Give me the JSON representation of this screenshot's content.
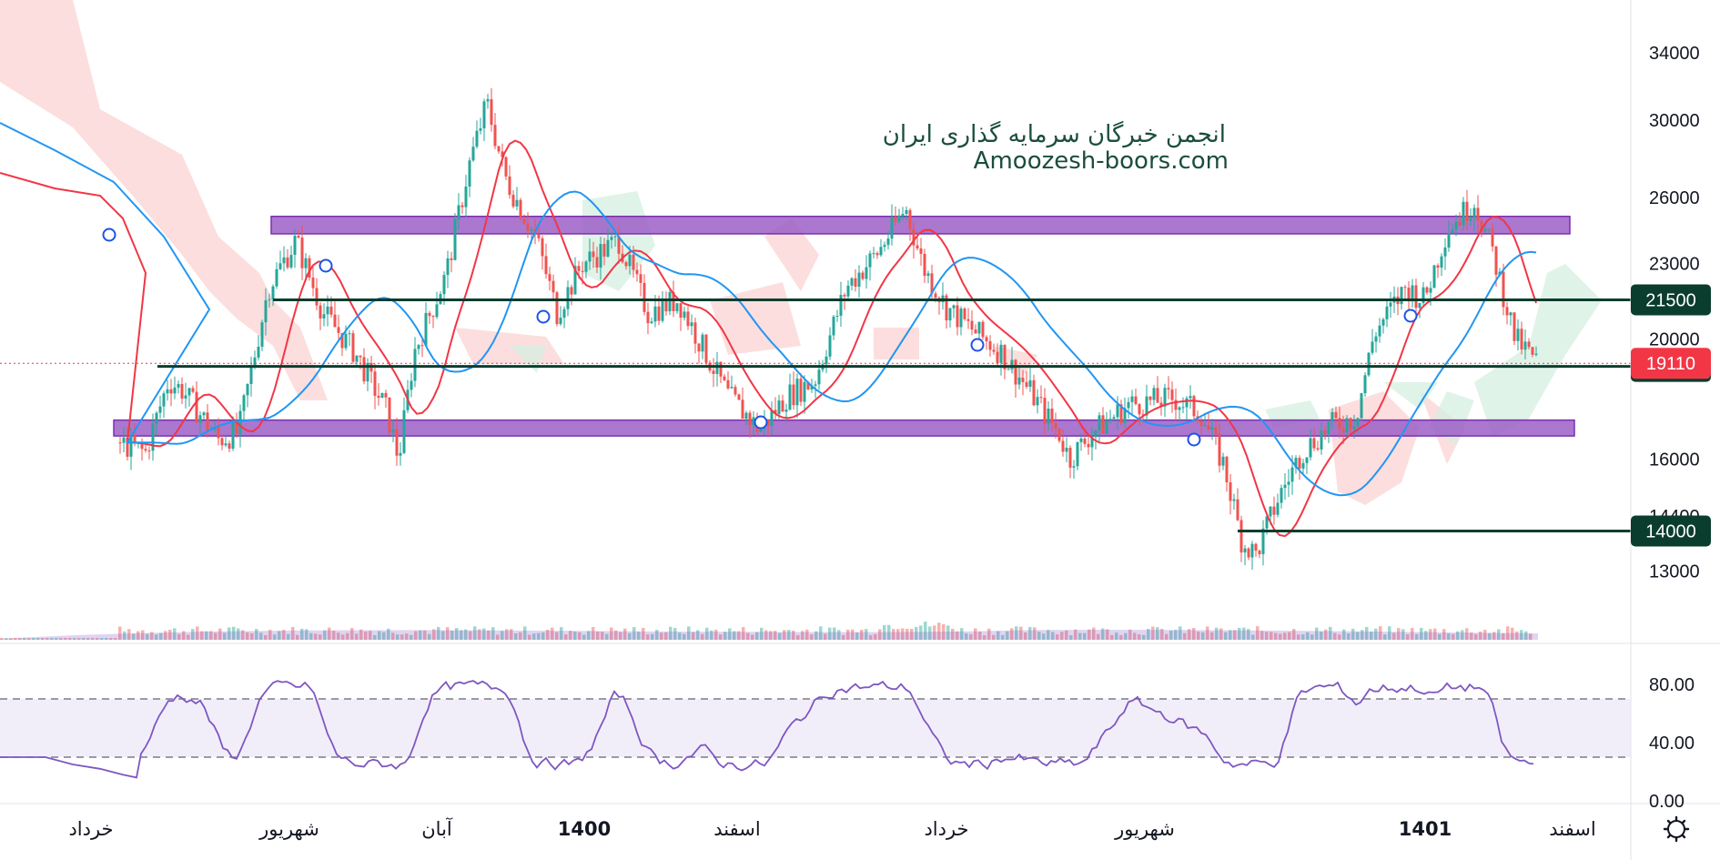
{
  "watermark": {
    "line1": "انجمن خبرگان سرمایه گذاری ایران",
    "line2": "Amoozesh-boors.com"
  },
  "colors": {
    "up": "#26a69a",
    "down": "#ef5350",
    "ma_fast": "#f23645",
    "ma_slow": "#2196f3",
    "level": "#0b3d2e",
    "zone": "#9c5fc7",
    "rsi": "#7e57c2",
    "last_price": "#f23645",
    "cloud_red": "#fbd3d3",
    "cloud_green": "#d6efe0"
  },
  "chart_data": [
    {
      "type": "candlestick",
      "title": "",
      "y_scale": "log",
      "ylim": [
        11500,
        37500
      ],
      "y_ticks": [
        34000,
        30000,
        26000,
        23000,
        20000,
        16000,
        14400,
        13000
      ],
      "x_ticks": [
        "خرداد",
        "شهریور",
        "آبان",
        "1400",
        "اسفند",
        "خرداد",
        "شهریور",
        "1401",
        "اسفند"
      ],
      "x_ticks_bold": [
        "1400",
        "1401"
      ],
      "last_price": 19110,
      "horizontal_levels": [
        21500,
        19000,
        14000
      ],
      "zones": [
        {
          "low": 24300,
          "high": 25100
        },
        {
          "low": 16700,
          "high": 17200
        }
      ],
      "key_points": [
        {
          "label": "start",
          "value": 16500
        },
        {
          "label": "peak",
          "value": 31000
        },
        {
          "label": "low",
          "value": 13100
        },
        {
          "label": "recent_high",
          "value": 25800
        },
        {
          "label": "last",
          "value": 19110
        }
      ],
      "series": [
        {
          "kind": "moving-average-fast"
        },
        {
          "kind": "moving-average-slow"
        },
        {
          "kind": "ichimoku-cloud"
        },
        {
          "kind": "volume"
        }
      ],
      "grid": false
    },
    {
      "type": "line",
      "title": "",
      "ylim": [
        0,
        100
      ],
      "y_ticks": [
        "80.00",
        "40.00",
        "0.00"
      ],
      "band": [
        30,
        70
      ],
      "grid": false
    }
  ],
  "axis": {
    "settings_icon": "gear-icon"
  }
}
